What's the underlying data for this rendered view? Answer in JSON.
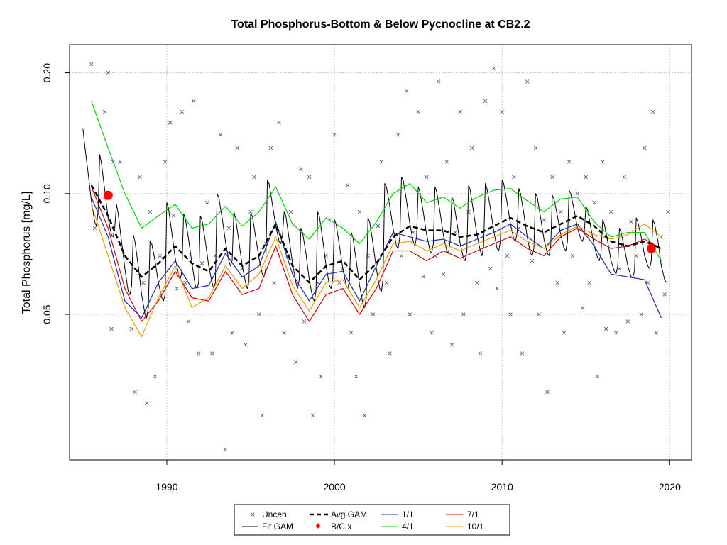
{
  "chart_data": {
    "type": "line",
    "title": "Total Phosphorus-Bottom & Below Pycnocline at CB2.2",
    "xlabel": "",
    "ylabel": "Total Phosphorus [mg/L]",
    "y_scale": "log",
    "xlim": [
      1984.2,
      2021.3
    ],
    "ylim": [
      0.0217,
      0.235
    ],
    "x_ticks": [
      1990,
      2000,
      2010,
      2020
    ],
    "x_tick_labels": [
      "1990",
      "2000",
      "2010",
      "2020"
    ],
    "y_ticks": [
      0.05,
      0.1,
      0.2
    ],
    "y_tick_labels": [
      "0.05",
      "0.10",
      "0.20"
    ],
    "grid": true,
    "legend_position": "bottom-center",
    "legend": [
      "Uncen.",
      "Fit.GAM",
      "Avg.GAM",
      "B/C x",
      "1/1",
      "4/1",
      "7/1",
      "10/1"
    ],
    "colors": {
      "uncen": "#4a5b7c",
      "fit_gam": "#000000",
      "avg_gam": "#000000",
      "bc": "#ff0000",
      "d1_1": "#1a2bb5",
      "d4_1": "#00d400",
      "d7_1": "#d40000",
      "d10_1": "#e8a000",
      "grid": "#c8c8c8"
    },
    "bc_points": [
      {
        "x": 1986.5,
        "y": 0.099
      },
      {
        "x": 2018.9,
        "y": 0.073
      }
    ],
    "seasonal_smooth_series": [
      {
        "name": "Avg.GAM",
        "x": [
          1985.5,
          1986.5,
          1987.5,
          1988.5,
          1989.5,
          1990.5,
          1991.5,
          1992.5,
          1993.5,
          1994.5,
          1995.5,
          1996.5,
          1997.5,
          1998.5,
          1999.5,
          2000.5,
          2001.5,
          2002.5,
          2003.5,
          2004.5,
          2005.5,
          2006.5,
          2007.5,
          2008.5,
          2009.5,
          2010.5,
          2011.5,
          2012.5,
          2013.5,
          2014.5,
          2015.5,
          2016.5,
          2017.5,
          2018.5,
          2019.5
        ],
        "y": [
          0.105,
          0.088,
          0.07,
          0.062,
          0.067,
          0.074,
          0.067,
          0.064,
          0.073,
          0.066,
          0.07,
          0.084,
          0.066,
          0.06,
          0.066,
          0.068,
          0.061,
          0.067,
          0.078,
          0.083,
          0.081,
          0.081,
          0.078,
          0.079,
          0.083,
          0.087,
          0.083,
          0.08,
          0.084,
          0.088,
          0.083,
          0.076,
          0.074,
          0.076,
          0.073
        ]
      },
      {
        "name": "1/1",
        "x": [
          1985.5,
          1986.5,
          1987.5,
          1988.5,
          1989.5,
          1990.5,
          1991.5,
          1992.5,
          1993.5,
          1994.5,
          1995.5,
          1996.5,
          1997.5,
          1998.5,
          1999.5,
          2000.5,
          2001.5,
          2002.5,
          2003.5,
          2004.5,
          2005.5,
          2006.5,
          2007.5,
          2008.5,
          2009.5,
          2010.5,
          2011.5,
          2012.5,
          2013.5,
          2014.5,
          2015.5,
          2016.5,
          2017.5,
          2018.5,
          2019.5
        ],
        "y": [
          0.098,
          0.078,
          0.054,
          0.049,
          0.06,
          0.068,
          0.058,
          0.059,
          0.071,
          0.062,
          0.066,
          0.085,
          0.063,
          0.054,
          0.063,
          0.064,
          0.054,
          0.066,
          0.08,
          0.078,
          0.076,
          0.077,
          0.074,
          0.077,
          0.08,
          0.084,
          0.078,
          0.073,
          0.081,
          0.084,
          0.074,
          0.063,
          0.062,
          0.061,
          0.049
        ]
      },
      {
        "name": "4/1",
        "x": [
          1985.5,
          1986.5,
          1987.5,
          1988.5,
          1989.5,
          1990.5,
          1991.5,
          1992.5,
          1993.5,
          1994.5,
          1995.5,
          1996.5,
          1997.5,
          1998.5,
          1999.5,
          2000.5,
          2001.5,
          2002.5,
          2003.5,
          2004.5,
          2005.5,
          2006.5,
          2007.5,
          2008.5,
          2009.5,
          2010.5,
          2011.5,
          2012.5,
          2013.5,
          2014.5,
          2015.5,
          2016.5,
          2017.5,
          2018.5,
          2019.5
        ],
        "y": [
          0.17,
          0.13,
          0.1,
          0.082,
          0.088,
          0.094,
          0.082,
          0.084,
          0.093,
          0.083,
          0.09,
          0.104,
          0.084,
          0.077,
          0.087,
          0.082,
          0.075,
          0.085,
          0.1,
          0.106,
          0.095,
          0.098,
          0.092,
          0.098,
          0.102,
          0.103,
          0.096,
          0.09,
          0.097,
          0.098,
          0.085,
          0.078,
          0.08,
          0.08,
          0.068
        ]
      },
      {
        "name": "7/1",
        "x": [
          1985.5,
          1986.5,
          1987.5,
          1988.5,
          1989.5,
          1990.5,
          1991.5,
          1992.5,
          1993.5,
          1994.5,
          1995.5,
          1996.5,
          1997.5,
          1998.5,
          1999.5,
          2000.5,
          2001.5,
          2002.5,
          2003.5,
          2004.5,
          2005.5,
          2006.5,
          2007.5,
          2008.5,
          2009.5,
          2010.5,
          2011.5,
          2012.5,
          2013.5,
          2014.5,
          2015.5,
          2016.5,
          2017.5,
          2018.5,
          2019.5
        ],
        "y": [
          0.104,
          0.082,
          0.058,
          0.048,
          0.054,
          0.064,
          0.055,
          0.054,
          0.064,
          0.056,
          0.058,
          0.074,
          0.056,
          0.048,
          0.056,
          0.058,
          0.05,
          0.058,
          0.072,
          0.072,
          0.068,
          0.072,
          0.069,
          0.072,
          0.075,
          0.078,
          0.073,
          0.07,
          0.078,
          0.082,
          0.077,
          0.073,
          0.074,
          0.077,
          0.073
        ]
      },
      {
        "name": "10/1",
        "x": [
          1985.5,
          1986.5,
          1987.5,
          1988.5,
          1989.5,
          1990.5,
          1991.5,
          1992.5,
          1993.5,
          1994.5,
          1995.5,
          1996.5,
          1997.5,
          1998.5,
          1999.5,
          2000.5,
          2001.5,
          2002.5,
          2003.5,
          2004.5,
          2005.5,
          2006.5,
          2007.5,
          2008.5,
          2009.5,
          2010.5,
          2011.5,
          2012.5,
          2013.5,
          2014.5,
          2015.5,
          2016.5,
          2017.5,
          2018.5,
          2019.5
        ],
        "y": [
          0.094,
          0.07,
          0.052,
          0.044,
          0.055,
          0.066,
          0.052,
          0.055,
          0.066,
          0.058,
          0.063,
          0.078,
          0.059,
          0.051,
          0.06,
          0.061,
          0.052,
          0.061,
          0.075,
          0.076,
          0.072,
          0.075,
          0.072,
          0.075,
          0.078,
          0.081,
          0.076,
          0.073,
          0.079,
          0.083,
          0.079,
          0.077,
          0.079,
          0.084,
          0.078
        ]
      }
    ],
    "fit_gam": {
      "name": "Fit.GAM",
      "x": [
        1985.0,
        1985.1,
        1985.3,
        1985.5,
        1985.7,
        1985.8,
        1985.9,
        1986.0,
        1986.1,
        1986.3,
        1986.5,
        1986.7,
        1986.8,
        1986.9,
        1987.0,
        1987.1,
        1987.3,
        1987.5,
        1987.7,
        1987.8,
        1987.9,
        1988.0,
        1988.1,
        1988.3,
        1988.5,
        1988.7,
        1988.8,
        1988.9,
        1989.0,
        1989.1,
        1989.3,
        1989.5,
        1989.7,
        1989.8,
        1989.9,
        1990.0,
        1990.1,
        1990.3,
        1990.5,
        1990.7,
        1990.8,
        1990.9,
        1991.0,
        1991.1,
        1991.3,
        1991.5,
        1991.7,
        1991.8,
        1991.9,
        1992.0,
        1992.1,
        1992.3,
        1992.5,
        1992.7,
        1992.8,
        1992.9,
        1993.0,
        1993.1,
        1993.3,
        1993.5,
        1993.7,
        1993.8,
        1993.9,
        1994.0,
        1994.1,
        1994.3,
        1994.5,
        1994.7,
        1994.8,
        1994.9,
        1995.0,
        1995.1,
        1995.3,
        1995.5,
        1995.7,
        1995.8,
        1995.9,
        1996.0,
        1996.1,
        1996.3,
        1996.5,
        1996.7,
        1996.8,
        1996.9,
        1997.0,
        1997.1,
        1997.3,
        1997.5,
        1997.7,
        1997.8,
        1997.9,
        1998.0,
        1998.1,
        1998.3,
        1998.5,
        1998.7,
        1998.8,
        1998.9,
        1999.0,
        1999.1,
        1999.3,
        1999.5,
        1999.7,
        1999.8,
        1999.9,
        2000.0,
        2000.1,
        2000.3,
        2000.5,
        2000.7,
        2000.8,
        2000.9,
        2001.0,
        2001.1,
        2001.3,
        2001.5,
        2001.7,
        2001.8,
        2001.9,
        2002.0,
        2002.1,
        2002.3,
        2002.5,
        2002.7,
        2002.8,
        2002.9,
        2003.0,
        2003.1,
        2003.3,
        2003.5,
        2003.7,
        2003.8,
        2003.9,
        2004.0,
        2004.1,
        2004.3,
        2004.5,
        2004.7,
        2004.8,
        2004.9,
        2005.0,
        2005.1,
        2005.3,
        2005.5,
        2005.7,
        2005.8,
        2005.9,
        2006.0,
        2006.1,
        2006.3,
        2006.5,
        2006.7,
        2006.8,
        2006.9,
        2007.0,
        2007.1,
        2007.3,
        2007.5,
        2007.7,
        2007.8,
        2007.9,
        2008.0,
        2008.1,
        2008.3,
        2008.5,
        2008.7,
        2008.8,
        2008.9,
        2009.0,
        2009.1,
        2009.3,
        2009.5,
        2009.7,
        2009.8,
        2009.9,
        2010.0,
        2010.1,
        2010.3,
        2010.5,
        2010.7,
        2010.8,
        2010.9,
        2011.0,
        2011.1,
        2011.3,
        2011.5,
        2011.7,
        2011.8,
        2011.9,
        2012.0,
        2012.1,
        2012.3,
        2012.5,
        2012.7,
        2012.8,
        2012.9,
        2013.0,
        2013.1,
        2013.3,
        2013.5,
        2013.7,
        2013.8,
        2013.9,
        2014.0,
        2014.1,
        2014.3,
        2014.5,
        2014.7,
        2014.8,
        2014.9,
        2015.0,
        2015.1,
        2015.3,
        2015.5,
        2015.7,
        2015.8,
        2015.9,
        2016.0,
        2016.1,
        2016.3,
        2016.5,
        2016.7,
        2016.8,
        2016.9,
        2017.0,
        2017.1,
        2017.3,
        2017.5,
        2017.7,
        2017.8,
        2017.9,
        2018.0,
        2018.1,
        2018.3,
        2018.5,
        2018.7,
        2018.8,
        2018.9,
        2019.0,
        2019.1,
        2019.3,
        2019.5,
        2019.7,
        2019.8
      ],
      "y": [
        0.145,
        0.132,
        0.113,
        0.096,
        0.085,
        0.083,
        0.09,
        0.125,
        0.119,
        0.102,
        0.087,
        0.079,
        0.078,
        0.083,
        0.094,
        0.089,
        0.076,
        0.065,
        0.057,
        0.056,
        0.059,
        0.079,
        0.076,
        0.066,
        0.056,
        0.05,
        0.049,
        0.052,
        0.076,
        0.075,
        0.068,
        0.06,
        0.055,
        0.054,
        0.056,
        0.095,
        0.092,
        0.08,
        0.069,
        0.063,
        0.061,
        0.064,
        0.089,
        0.087,
        0.077,
        0.067,
        0.059,
        0.058,
        0.06,
        0.088,
        0.086,
        0.076,
        0.066,
        0.06,
        0.058,
        0.06,
        0.1,
        0.098,
        0.087,
        0.076,
        0.068,
        0.066,
        0.068,
        0.09,
        0.087,
        0.076,
        0.066,
        0.06,
        0.058,
        0.06,
        0.089,
        0.088,
        0.078,
        0.069,
        0.063,
        0.062,
        0.065,
        0.108,
        0.106,
        0.094,
        0.083,
        0.076,
        0.075,
        0.079,
        0.09,
        0.088,
        0.077,
        0.067,
        0.06,
        0.058,
        0.061,
        0.082,
        0.08,
        0.071,
        0.061,
        0.055,
        0.054,
        0.057,
        0.09,
        0.088,
        0.077,
        0.066,
        0.059,
        0.058,
        0.061,
        0.086,
        0.084,
        0.074,
        0.065,
        0.059,
        0.058,
        0.061,
        0.08,
        0.078,
        0.068,
        0.059,
        0.053,
        0.052,
        0.055,
        0.087,
        0.085,
        0.075,
        0.065,
        0.058,
        0.057,
        0.061,
        0.106,
        0.104,
        0.093,
        0.082,
        0.074,
        0.073,
        0.078,
        0.11,
        0.108,
        0.096,
        0.084,
        0.076,
        0.074,
        0.078,
        0.104,
        0.101,
        0.09,
        0.079,
        0.072,
        0.071,
        0.075,
        0.104,
        0.101,
        0.09,
        0.079,
        0.072,
        0.071,
        0.076,
        0.098,
        0.096,
        0.085,
        0.075,
        0.069,
        0.068,
        0.072,
        0.105,
        0.102,
        0.09,
        0.079,
        0.072,
        0.07,
        0.074,
        0.106,
        0.103,
        0.092,
        0.081,
        0.073,
        0.072,
        0.076,
        0.108,
        0.106,
        0.095,
        0.084,
        0.077,
        0.076,
        0.08,
        0.103,
        0.1,
        0.089,
        0.078,
        0.071,
        0.07,
        0.073,
        0.1,
        0.098,
        0.087,
        0.077,
        0.071,
        0.07,
        0.074,
        0.099,
        0.097,
        0.088,
        0.079,
        0.073,
        0.072,
        0.076,
        0.102,
        0.1,
        0.091,
        0.082,
        0.077,
        0.076,
        0.079,
        0.093,
        0.091,
        0.082,
        0.074,
        0.069,
        0.068,
        0.071,
        0.086,
        0.084,
        0.076,
        0.068,
        0.064,
        0.063,
        0.066,
        0.082,
        0.08,
        0.073,
        0.066,
        0.062,
        0.062,
        0.064,
        0.087,
        0.085,
        0.078,
        0.07,
        0.066,
        0.065,
        0.068,
        0.086,
        0.084,
        0.076,
        0.066,
        0.061,
        0.06
      ]
    },
    "uncen_points": {
      "x": [
        1985.5,
        1985.7,
        1986.5,
        1986.8,
        1986.3,
        1986.7,
        1987.2,
        1987.9,
        1988.1,
        1988.4,
        1988.6,
        1988.8,
        1989.0,
        1989.3,
        1989.6,
        1989.9,
        1990.2,
        1990.4,
        1990.6,
        1990.9,
        1991.1,
        1991.3,
        1991.6,
        1991.9,
        1992.1,
        1992.4,
        1992.7,
        1992.9,
        1993.2,
        1993.5,
        1993.7,
        1993.9,
        1994.2,
        1994.5,
        1994.7,
        1995.0,
        1995.2,
        1995.5,
        1995.7,
        1995.9,
        1996.2,
        1996.4,
        1996.7,
        1997.0,
        1997.2,
        1997.4,
        1997.7,
        1998.0,
        1998.2,
        1998.5,
        1998.7,
        1999.0,
        1999.2,
        1999.5,
        1999.7,
        2000.0,
        2000.3,
        2000.5,
        2000.8,
        2001.0,
        2001.3,
        2001.5,
        2001.8,
        2002.0,
        2002.3,
        2002.6,
        2002.8,
        2003.1,
        2003.3,
        2003.6,
        2003.8,
        2004.0,
        2004.3,
        2004.5,
        2004.7,
        2005.0,
        2005.3,
        2005.5,
        2005.8,
        2006.0,
        2006.2,
        2006.5,
        2006.7,
        2007.0,
        2007.2,
        2007.5,
        2007.7,
        2008.0,
        2008.2,
        2008.5,
        2008.7,
        2009.0,
        2009.3,
        2009.5,
        2009.7,
        2010.0,
        2010.3,
        2010.5,
        2010.7,
        2011.0,
        2011.2,
        2011.5,
        2011.8,
        2012.0,
        2012.2,
        2012.5,
        2012.7,
        2013.0,
        2013.3,
        2013.5,
        2013.7,
        2014.0,
        2014.2,
        2014.5,
        2014.8,
        2015.0,
        2015.2,
        2015.5,
        2015.7,
        2016.0,
        2016.2,
        2016.5,
        2016.8,
        2017.0,
        2017.3,
        2017.5,
        2017.7,
        2018.0,
        2018.3,
        2018.5,
        2018.7,
        2019.0,
        2019.2,
        2019.5,
        2019.7,
        2019.9
      ],
      "y": [
        0.21,
        0.082,
        0.2,
        0.12,
        0.16,
        0.046,
        0.12,
        0.046,
        0.032,
        0.11,
        0.06,
        0.03,
        0.09,
        0.035,
        0.07,
        0.12,
        0.15,
        0.088,
        0.058,
        0.16,
        0.06,
        0.048,
        0.17,
        0.04,
        0.067,
        0.095,
        0.04,
        0.07,
        0.14,
        0.023,
        0.082,
        0.045,
        0.13,
        0.065,
        0.042,
        0.09,
        0.11,
        0.05,
        0.028,
        0.075,
        0.13,
        0.06,
        0.15,
        0.045,
        0.07,
        0.09,
        0.038,
        0.115,
        0.048,
        0.11,
        0.028,
        0.06,
        0.035,
        0.07,
        0.086,
        0.14,
        0.06,
        0.065,
        0.105,
        0.045,
        0.035,
        0.09,
        0.028,
        0.07,
        0.05,
        0.083,
        0.12,
        0.06,
        0.04,
        0.078,
        0.14,
        0.07,
        0.18,
        0.05,
        0.08,
        0.16,
        0.062,
        0.11,
        0.045,
        0.07,
        0.19,
        0.063,
        0.12,
        0.042,
        0.08,
        0.16,
        0.05,
        0.09,
        0.13,
        0.06,
        0.04,
        0.17,
        0.065,
        0.205,
        0.058,
        0.16,
        0.07,
        0.05,
        0.11,
        0.082,
        0.04,
        0.19,
        0.068,
        0.13,
        0.05,
        0.086,
        0.032,
        0.11,
        0.06,
        0.09,
        0.045,
        0.12,
        0.07,
        0.1,
        0.052,
        0.11,
        0.06,
        0.095,
        0.035,
        0.12,
        0.046,
        0.09,
        0.045,
        0.065,
        0.11,
        0.048,
        0.085,
        0.07,
        0.05,
        0.13,
        0.06,
        0.16,
        0.045,
        0.078,
        0.056,
        0.09
      ]
    }
  }
}
